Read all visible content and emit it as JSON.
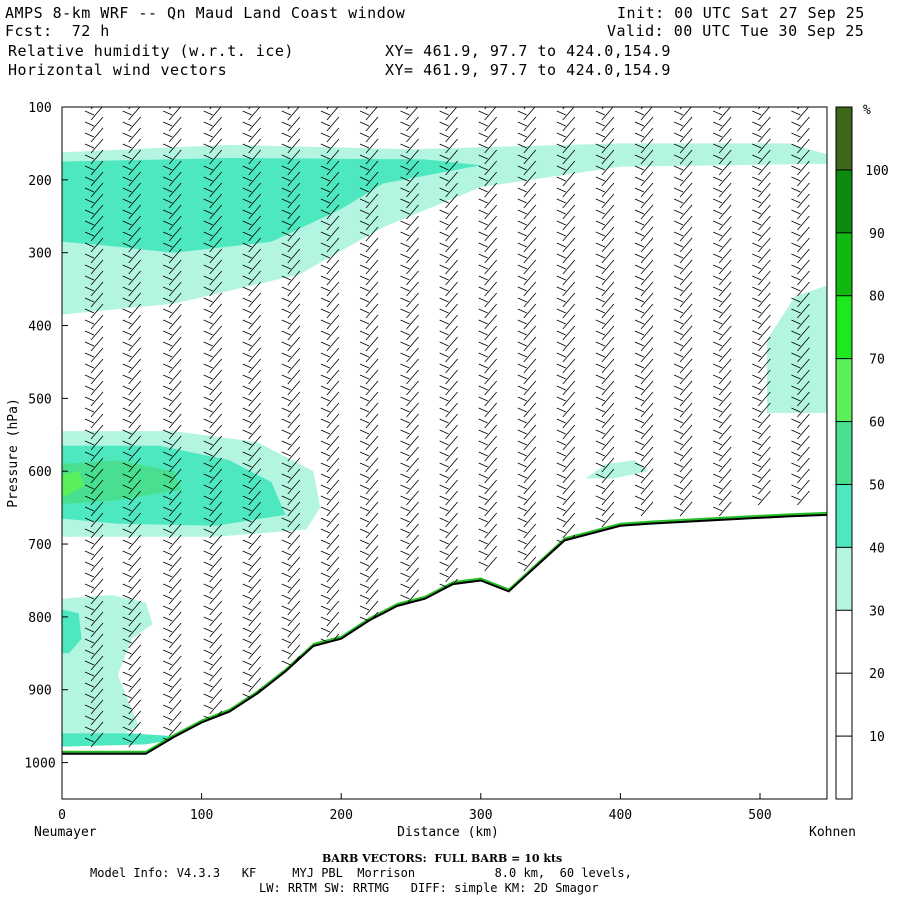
{
  "header": {
    "title": "AMPS 8-km WRF -- Qn Maud Land Coast window",
    "init": "Init: 00 UTC Sat 27 Sep 25",
    "fcst": "Fcst:  72 h",
    "valid": "Valid: 00 UTC Tue 30 Sep 25",
    "field1": "Relative humidity (w.r.t. ice)",
    "xy1": "XY= 461.9, 97.7 to 424.0,154.9",
    "field2": "Horizontal wind vectors",
    "xy2": "XY= 461.9, 97.7 to 424.0,154.9"
  },
  "footer": {
    "barb_note": "BARB VECTORS:  FULL BARB = 10 kts",
    "model_line1": "Model Info: V4.3.3   KF     MYJ PBL  Morrison           8.0 km,  60 levels,",
    "model_line2": "LW: RRTM SW: RRTMG   DIFF: simple KM: 2D Smagor"
  },
  "chart_data": {
    "type": "heatmap",
    "title": "Relative humidity (w.r.t. ice) cross-section with horizontal wind barbs",
    "xlabel": "Distance (km)",
    "ylabel": "Pressure (hPa)",
    "x_ticks": [
      0,
      100,
      200,
      300,
      400,
      500
    ],
    "xlim": [
      0,
      548
    ],
    "y_ticks": [
      100,
      200,
      300,
      400,
      500,
      600,
      700,
      800,
      900,
      1000
    ],
    "ylim": [
      100,
      1050
    ],
    "x_endpoints": {
      "left": "Neumayer",
      "right": "Kohnen"
    },
    "colorbar": {
      "unit": "%",
      "levels": [
        10,
        20,
        30,
        40,
        50,
        60,
        70,
        80,
        90,
        100
      ],
      "colors": [
        "#ffffff",
        "#ffffff",
        "#ffffff",
        "#b4f5e1",
        "#4ee8c0",
        "#48e090",
        "#5cef5c",
        "#1ee81e",
        "#10b810",
        "#0e8a0e",
        "#3f6818"
      ]
    },
    "terrain_km": [
      0,
      20,
      40,
      60,
      80,
      100,
      120,
      140,
      160,
      180,
      200,
      220,
      240,
      260,
      280,
      300,
      320,
      340,
      360,
      380,
      400,
      420,
      440,
      460,
      480,
      500,
      520,
      548
    ],
    "terrain_hpa": [
      988,
      988,
      988,
      988,
      965,
      945,
      930,
      905,
      875,
      840,
      830,
      805,
      785,
      775,
      755,
      750,
      765,
      730,
      695,
      685,
      675,
      672,
      670,
      668,
      666,
      664,
      662,
      660
    ],
    "barb_columns_km": [
      0,
      27,
      56,
      85,
      113,
      141,
      169,
      197,
      226,
      254,
      282,
      310,
      338,
      366,
      394,
      422,
      450,
      478,
      506,
      534
    ],
    "humidity_regions": [
      {
        "name": "upper moist layer",
        "km": [
          0,
          540
        ],
        "hpa": [
          160,
          330
        ],
        "rh_max": 45
      },
      {
        "name": "mid moist layer",
        "km": [
          0,
          185
        ],
        "hpa": [
          545,
          680
        ],
        "rh_max": 60
      },
      {
        "name": "lower moist layer",
        "km": [
          0,
          65
        ],
        "hpa": [
          775,
          975
        ],
        "rh_max": 45
      },
      {
        "name": "surface moist layer",
        "km": [
          0,
          548
        ],
        "hpa": [
          970,
          990
        ],
        "rh_max": 80
      }
    ]
  }
}
